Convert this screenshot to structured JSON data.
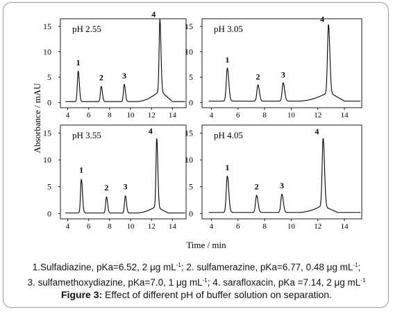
{
  "chart_data": {
    "type": "line",
    "ylabel": "Absorbance / mAU",
    "xlabel": "Time / min",
    "panels": [
      {
        "label": "pH 2.55",
        "xticks": [
          4,
          6,
          8,
          10,
          12,
          14
        ],
        "yticks": [
          0,
          5,
          10,
          15
        ],
        "xlim": [
          3.3,
          15.3
        ],
        "ylim": [
          -1,
          16.5
        ],
        "baseline": 0.2,
        "ramp": {
          "start": 10.5,
          "end": 12.8,
          "height": 2.2
        },
        "peaks": [
          {
            "label": "1",
            "time": 5.0,
            "height": 6.0
          },
          {
            "label": "2",
            "time": 7.2,
            "height": 3.0
          },
          {
            "label": "3",
            "time": 9.4,
            "height": 3.4
          },
          {
            "label": "4",
            "time": 12.8,
            "height": 15.5
          }
        ]
      },
      {
        "label": "pH 3.05",
        "xticks": [
          4,
          6,
          8,
          10,
          12,
          14
        ],
        "yticks": [
          0,
          5,
          10,
          15
        ],
        "xlim": [
          3.3,
          15.3
        ],
        "ylim": [
          -1,
          16.5
        ],
        "baseline": 0.3,
        "ramp": {
          "start": 10.5,
          "end": 12.8,
          "height": 1.8
        },
        "peaks": [
          {
            "label": "1",
            "time": 5.2,
            "height": 6.5
          },
          {
            "label": "2",
            "time": 7.5,
            "height": 3.2
          },
          {
            "label": "3",
            "time": 9.4,
            "height": 3.6
          },
          {
            "label": "4",
            "time": 12.8,
            "height": 14.5
          }
        ]
      },
      {
        "label": "pH 3.55",
        "xticks": [
          4,
          6,
          8,
          10,
          12,
          14
        ],
        "yticks": [
          0,
          5,
          10,
          15
        ],
        "xlim": [
          3.3,
          15.3
        ],
        "ylim": [
          -1,
          16.5
        ],
        "baseline": 0.1,
        "ramp": {
          "start": 10.5,
          "end": 12.4,
          "height": 1.2
        },
        "peaks": [
          {
            "label": "1",
            "time": 5.3,
            "height": 6.3
          },
          {
            "label": "2",
            "time": 7.7,
            "height": 3.0
          },
          {
            "label": "3",
            "time": 9.5,
            "height": 3.2
          },
          {
            "label": "4",
            "time": 12.5,
            "height": 13.6
          }
        ]
      },
      {
        "label": "pH 4.05",
        "xticks": [
          4,
          6,
          8,
          10,
          12,
          14
        ],
        "yticks": [
          0,
          5,
          10,
          15
        ],
        "xlim": [
          3.3,
          15.3
        ],
        "ylim": [
          -1,
          16.5
        ],
        "baseline": 0.2,
        "ramp": {
          "start": 10.5,
          "end": 12.3,
          "height": 1.3
        },
        "peaks": [
          {
            "label": "1",
            "time": 5.2,
            "height": 6.8
          },
          {
            "label": "2",
            "time": 7.4,
            "height": 3.2
          },
          {
            "label": "3",
            "time": 9.3,
            "height": 3.4
          },
          {
            "label": "4",
            "time": 12.4,
            "height": 13.5
          }
        ]
      }
    ]
  },
  "legend": {
    "line1_parts": [
      "1.Sulfadiazine, pKa=6.52, 2 μg mL",
      "-1",
      "; 2. sulfamerazine, pKa=6.77, 0.48 μg mL",
      "-1",
      ";"
    ],
    "line2_parts": [
      "3. sulfamethoxydiazine, pKa=7.0, 1 μg mL",
      "-1",
      "; 4. sarafloxacin, pKa =7.14, 2 μg mL",
      "-1"
    ]
  },
  "caption": {
    "label": "Figure 3:",
    "text": " Effect of different pH of buffer solution on separation."
  }
}
